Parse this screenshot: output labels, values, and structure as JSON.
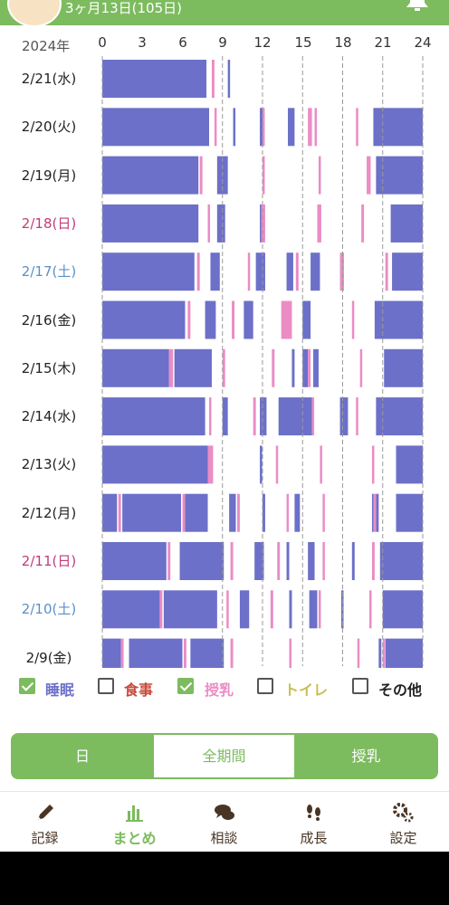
{
  "header": {
    "age_text": "3ヶ月13日(105日)"
  },
  "chart_header": {
    "year": "2024年",
    "hours": [
      "0",
      "3",
      "6",
      "9",
      "12",
      "15",
      "18",
      "21",
      "24"
    ]
  },
  "days": [
    {
      "label": "2/21(水)",
      "type": "weekday",
      "sleep": [
        [
          0,
          7.8
        ],
        [
          9.4,
          9.5
        ]
      ],
      "feed": [
        [
          8.2,
          8.4
        ]
      ]
    },
    {
      "label": "2/20(火)",
      "type": "weekday",
      "sleep": [
        [
          0,
          8
        ],
        [
          9.8,
          9.9
        ],
        [
          11.8,
          12
        ],
        [
          13.9,
          14.4
        ],
        [
          20.3,
          24
        ]
      ],
      "feed": [
        [
          8.4,
          8.5
        ],
        [
          12,
          12.1
        ],
        [
          15.4,
          15.7
        ],
        [
          15.9,
          16
        ],
        [
          19,
          19.1
        ]
      ]
    },
    {
      "label": "2/19(月)",
      "type": "weekday",
      "sleep": [
        [
          0,
          7.2
        ],
        [
          8.6,
          9.4
        ],
        [
          20.5,
          24
        ]
      ],
      "feed": [
        [
          7.3,
          7.5
        ],
        [
          12,
          12.1
        ],
        [
          16.2,
          16.3
        ],
        [
          19.8,
          20.1
        ]
      ]
    },
    {
      "label": "2/18(日)",
      "type": "sun",
      "sleep": [
        [
          0,
          7.2
        ],
        [
          8.6,
          9.2
        ],
        [
          11.8,
          12
        ],
        [
          21.6,
          24
        ]
      ],
      "feed": [
        [
          7.9,
          8
        ],
        [
          11.9,
          12.2
        ],
        [
          16.1,
          16.4
        ],
        [
          19.4,
          19.6
        ]
      ]
    },
    {
      "label": "2/17(土)",
      "type": "sat",
      "sleep": [
        [
          0,
          6.9
        ],
        [
          8.1,
          8.8
        ],
        [
          11.5,
          12.2
        ],
        [
          13.8,
          14.3
        ],
        [
          15.6,
          16.3
        ],
        [
          21.7,
          24
        ]
      ],
      "feed": [
        [
          7.1,
          7.3
        ],
        [
          10.9,
          11
        ],
        [
          14.5,
          14.7
        ],
        [
          17.8,
          18.1
        ],
        [
          21.2,
          21.4
        ]
      ]
    },
    {
      "label": "2/16(金)",
      "type": "weekday",
      "sleep": [
        [
          0,
          6.2
        ],
        [
          7.7,
          8.5
        ],
        [
          10.6,
          11.3
        ],
        [
          15,
          15.6
        ],
        [
          20.4,
          24
        ]
      ],
      "feed": [
        [
          6.4,
          6.6
        ],
        [
          9.7,
          9.9
        ],
        [
          13.4,
          14.2
        ],
        [
          18.7,
          18.8
        ]
      ]
    },
    {
      "label": "2/15(木)",
      "type": "weekday",
      "sleep": [
        [
          0,
          5
        ],
        [
          5.4,
          8.2
        ],
        [
          14.2,
          14.4
        ],
        [
          15,
          15.4
        ],
        [
          15.8,
          16.2
        ],
        [
          21.1,
          24
        ]
      ],
      "feed": [
        [
          5,
          5.3
        ],
        [
          9,
          9.2
        ],
        [
          12.7,
          12.9
        ],
        [
          15.4,
          15.6
        ],
        [
          19.3,
          19.4
        ]
      ]
    },
    {
      "label": "2/14(水)",
      "type": "weekday",
      "sleep": [
        [
          0,
          7.7
        ],
        [
          9,
          9.4
        ],
        [
          11.8,
          12.3
        ],
        [
          13.2,
          15.7
        ],
        [
          17.8,
          18.4
        ],
        [
          20.5,
          24
        ]
      ],
      "feed": [
        [
          8,
          8.1
        ],
        [
          11.3,
          11.5
        ],
        [
          15.7,
          15.8
        ],
        [
          19,
          19.1
        ]
      ]
    },
    {
      "label": "2/13(火)",
      "type": "weekday",
      "sleep": [
        [
          0,
          7.9
        ],
        [
          11.8,
          11.9
        ],
        [
          22,
          24
        ]
      ],
      "feed": [
        [
          7.9,
          8.3
        ],
        [
          13,
          13.1
        ],
        [
          16.3,
          16.4
        ],
        [
          20.2,
          20.3
        ]
      ]
    },
    {
      "label": "2/12(月)",
      "type": "weekday",
      "sleep": [
        [
          0,
          1.1
        ],
        [
          1.5,
          5.9
        ],
        [
          6.2,
          7.9
        ],
        [
          9.5,
          10
        ],
        [
          12,
          12.2
        ],
        [
          14.4,
          14.8
        ],
        [
          20.2,
          20.3
        ],
        [
          20.5,
          20.7
        ],
        [
          22,
          24
        ]
      ],
      "feed": [
        [
          1.2,
          1.4
        ],
        [
          6,
          6.2
        ],
        [
          10.1,
          10.3
        ],
        [
          13.8,
          13.9
        ],
        [
          16.5,
          16.6
        ],
        [
          20.3,
          20.5
        ]
      ]
    },
    {
      "label": "2/11(日)",
      "type": "sun",
      "sleep": [
        [
          0,
          4.8
        ],
        [
          5.8,
          9.1
        ],
        [
          11.4,
          12.1
        ],
        [
          13.8,
          14
        ],
        [
          15.4,
          15.9
        ],
        [
          18.7,
          18.9
        ],
        [
          20.8,
          24
        ]
      ],
      "feed": [
        [
          4.9,
          5.1
        ],
        [
          9.6,
          9.8
        ],
        [
          13.1,
          13.3
        ],
        [
          16.5,
          16.6
        ],
        [
          20.2,
          20.4
        ]
      ]
    },
    {
      "label": "2/10(土)",
      "type": "sat",
      "sleep": [
        [
          0,
          4.3
        ],
        [
          4.6,
          8.6
        ],
        [
          10.3,
          11
        ],
        [
          14,
          14.2
        ],
        [
          15.5,
          16.1
        ],
        [
          17.9,
          18
        ],
        [
          21,
          24
        ]
      ],
      "feed": [
        [
          4.3,
          4.5
        ],
        [
          9.3,
          9.4
        ],
        [
          12.6,
          12.8
        ],
        [
          16.2,
          16.3
        ],
        [
          20,
          20.1
        ]
      ]
    },
    {
      "label": "2/9(金)",
      "type": "weekday",
      "sleep": [
        [
          0,
          1.4
        ],
        [
          2,
          6
        ],
        [
          6.6,
          9.1
        ],
        [
          20.7,
          20.9
        ],
        [
          21.2,
          24
        ]
      ],
      "feed": [
        [
          1.4,
          1.6
        ],
        [
          6.1,
          6.3
        ],
        [
          9.6,
          9.8
        ],
        [
          14,
          14.1
        ],
        [
          19.1,
          19.2
        ],
        [
          21,
          21.1
        ]
      ]
    }
  ],
  "colors": {
    "sleep": "#6c70c8",
    "feed": "#eb8cc5",
    "food": "#c84a3c",
    "toilet": "#c7bf55",
    "other": "#222222",
    "accent": "#7dbb5f",
    "grid": "#9a9a9a",
    "sun": "#c33b7b",
    "sat": "#5b8fc9"
  },
  "legend": [
    {
      "label": "睡眠",
      "checked": true,
      "color": "#6c70c8"
    },
    {
      "label": "食事",
      "checked": false,
      "color": "#c84a3c"
    },
    {
      "label": "授乳",
      "checked": true,
      "color": "#eb8cc5"
    },
    {
      "label": "トイレ",
      "checked": false,
      "color": "#c7bf55"
    },
    {
      "label": "その他",
      "checked": false,
      "color": "#222222"
    }
  ],
  "tabs": [
    {
      "label": "日",
      "active": false
    },
    {
      "label": "全期間",
      "active": true
    },
    {
      "label": "授乳",
      "active": false
    }
  ],
  "nav": [
    {
      "label": "記録",
      "icon": "pencil-icon",
      "active": false
    },
    {
      "label": "まとめ",
      "icon": "bar-chart-icon",
      "active": true
    },
    {
      "label": "相談",
      "icon": "speech-bubbles-icon",
      "active": false
    },
    {
      "label": "成長",
      "icon": "footprints-icon",
      "active": false
    },
    {
      "label": "設定",
      "icon": "gears-icon",
      "active": false
    }
  ]
}
